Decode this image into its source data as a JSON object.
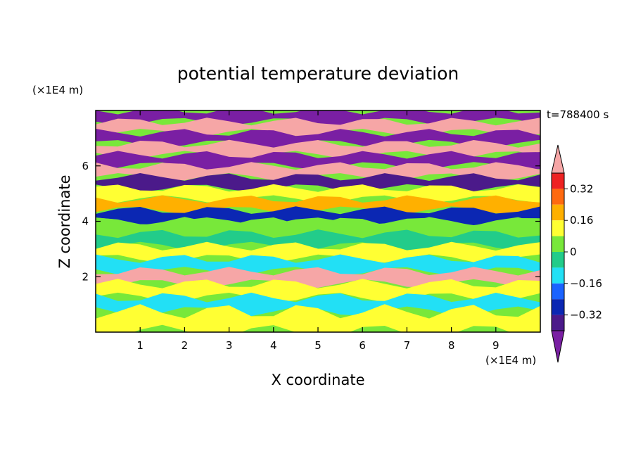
{
  "chart_data": {
    "type": "heatmap",
    "title": "potential temperature deviation",
    "xlabel": "X coordinate",
    "ylabel": "Z coordinate",
    "x_unit": "(×1E4 m)",
    "z_unit": "(×1E4 m)",
    "time_label": "t=788400 s",
    "xlim": [
      0,
      10
    ],
    "ylim": [
      0,
      8
    ],
    "x_ticks": [
      "1",
      "2",
      "3",
      "4",
      "5",
      "6",
      "7",
      "8",
      "9"
    ],
    "y_ticks": [
      "2",
      "4",
      "6"
    ],
    "colorbar": {
      "levels": [
        -0.4,
        -0.32,
        -0.24,
        -0.16,
        -0.08,
        0,
        0.08,
        0.16,
        0.24,
        0.32,
        0.4
      ],
      "labels": [
        "0.32",
        "0.16",
        "0",
        "−0.16",
        "−0.32"
      ],
      "label_values": [
        0.32,
        0.16,
        0,
        -0.16,
        -0.32
      ],
      "colors": [
        "#7a1fa3",
        "#4b1a8a",
        "#0b27b3",
        "#1b63ff",
        "#22e0f5",
        "#22cc8a",
        "#78e83a",
        "#ffff33",
        "#ffb000",
        "#ff6a10",
        "#ee2222",
        "#f6a6a6"
      ],
      "extend": "both"
    },
    "bands": [
      {
        "z": 7.8,
        "value": -0.45
      },
      {
        "z": 7.4,
        "value": 0.45
      },
      {
        "z": 7.0,
        "value": -0.45
      },
      {
        "z": 6.6,
        "value": 0.45
      },
      {
        "z": 6.2,
        "value": -0.45
      },
      {
        "z": 5.8,
        "value": 0.45
      },
      {
        "z": 5.4,
        "value": -0.4
      },
      {
        "z": 5.0,
        "value": 0.1
      },
      {
        "z": 4.6,
        "value": 0.2
      },
      {
        "z": 4.2,
        "value": -0.3
      },
      {
        "z": 3.8,
        "value": 0.05
      },
      {
        "z": 3.3,
        "value": -0.05
      },
      {
        "z": 2.9,
        "value": 0.08
      },
      {
        "z": 2.4,
        "value": -0.12
      },
      {
        "z": 2.0,
        "value": 0.4
      },
      {
        "z": 1.5,
        "value": 0.1
      },
      {
        "z": 1.0,
        "value": -0.1
      },
      {
        "z": 0.5,
        "value": 0.08
      }
    ]
  }
}
